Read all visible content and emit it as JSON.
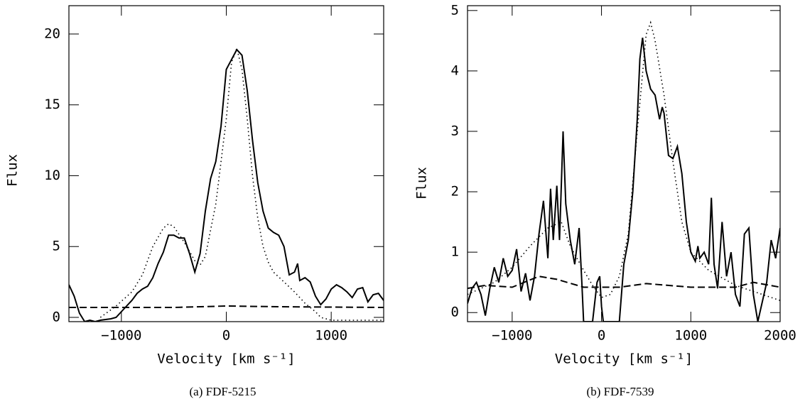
{
  "chart_data": [
    {
      "type": "line",
      "caption": "(a) FDF-5215",
      "xlabel": "Velocity [km s⁻¹]",
      "ylabel": "Flux",
      "xlim": [
        -1500,
        1500
      ],
      "ylim": [
        -0.3,
        22
      ],
      "xticks": [
        {
          "value": -1000,
          "label": "−1000"
        },
        0,
        1000
      ],
      "yticks": [
        0,
        5,
        10,
        15,
        20
      ],
      "series": [
        {
          "color": "#000000",
          "style": "solid",
          "x": [
            -1500,
            -1450,
            -1400,
            -1350,
            -1300,
            -1250,
            -1200,
            -1100,
            -1050,
            -1000,
            -950,
            -900,
            -850,
            -800,
            -750,
            -700,
            -650,
            -600,
            -550,
            -500,
            -450,
            -400,
            -350,
            -300,
            -250,
            -200,
            -150,
            -100,
            -50,
            0,
            50,
            100,
            150,
            200,
            250,
            300,
            350,
            400,
            450,
            500,
            550,
            600,
            650,
            680,
            700,
            750,
            800,
            850,
            900,
            950,
            1000,
            1050,
            1100,
            1150,
            1200,
            1250,
            1300,
            1350,
            1400,
            1450,
            1500
          ],
          "values": [
            2.3,
            1.5,
            0.3,
            -0.3,
            -0.2,
            -0.3,
            -0.2,
            -0.1,
            0,
            0.4,
            0.8,
            1.2,
            1.7,
            2.0,
            2.2,
            2.8,
            3.8,
            4.6,
            5.8,
            5.8,
            5.6,
            5.6,
            4.5,
            3.2,
            4.5,
            7.5,
            9.8,
            11,
            13.5,
            17.5,
            18.2,
            18.9,
            18.5,
            16,
            12.5,
            9.5,
            7.5,
            6.3,
            6.0,
            5.8,
            5.0,
            3.0,
            3.2,
            3.8,
            2.6,
            2.8,
            2.5,
            1.5,
            0.9,
            1.3,
            2.0,
            2.3,
            2.1,
            1.8,
            1.4,
            2.0,
            2.1,
            1.1,
            1.6,
            1.7,
            1.2
          ]
        },
        {
          "color": "#000000",
          "style": "dotted",
          "x": [
            -1200,
            -1050,
            -900,
            -800,
            -700,
            -600,
            -550,
            -500,
            -400,
            -300,
            -250,
            -200,
            -100,
            0,
            50,
            100,
            150,
            200,
            250,
            300,
            350,
            400,
            450,
            550,
            650,
            750,
            850,
            900,
            1000,
            1500
          ],
          "values": [
            0,
            0.8,
            1.8,
            3,
            5,
            6.3,
            6.6,
            6.4,
            5.3,
            4.0,
            3.7,
            4.3,
            8,
            14,
            18,
            19,
            17.5,
            14,
            10,
            7,
            5,
            3.9,
            3.2,
            2.5,
            1.8,
            1.0,
            0.4,
            0,
            -0.2,
            -0.2
          ]
        },
        {
          "color": "#000000",
          "style": "dashed",
          "x": [
            -1500,
            -500,
            0,
            500,
            1500
          ],
          "values": [
            0.7,
            0.7,
            0.8,
            0.75,
            0.7
          ]
        }
      ]
    },
    {
      "type": "line",
      "caption": "(b) FDF-7539",
      "xlabel": "Velocity [km s⁻¹]",
      "ylabel": "Flux",
      "xlim": [
        -1500,
        2000
      ],
      "ylim": [
        -0.15,
        5.08
      ],
      "xticks": [
        {
          "value": -1000,
          "label": "−1000"
        },
        0,
        1000,
        2000
      ],
      "yticks": [
        0,
        1,
        2,
        3,
        4,
        5
      ],
      "series": [
        {
          "color": "#000000",
          "style": "solid",
          "x": [
            -1500,
            -1450,
            -1400,
            -1350,
            -1300,
            -1250,
            -1200,
            -1150,
            -1100,
            -1050,
            -1000,
            -950,
            -900,
            -850,
            -800,
            -750,
            -700,
            -650,
            -600,
            -570,
            -540,
            -500,
            -470,
            -430,
            -400,
            -350,
            -300,
            -250,
            -220,
            -200,
            -100,
            -50,
            -20,
            0,
            20,
            200,
            250,
            300,
            350,
            400,
            430,
            460,
            500,
            550,
            600,
            650,
            680,
            700,
            750,
            800,
            850,
            900,
            950,
            1000,
            1050,
            1080,
            1100,
            1150,
            1200,
            1230,
            1260,
            1300,
            1350,
            1400,
            1450,
            1500,
            1550,
            1600,
            1650,
            1700,
            1750,
            1850,
            1900,
            1950,
            2000
          ],
          "values": [
            0.15,
            0.4,
            0.5,
            0.3,
            -0.05,
            0.4,
            0.75,
            0.5,
            0.9,
            0.6,
            0.7,
            1.05,
            0.35,
            0.65,
            0.2,
            0.6,
            1.3,
            1.85,
            0.9,
            2.05,
            1.2,
            2.1,
            1.2,
            3.0,
            1.8,
            1.2,
            0.8,
            1.4,
            0.5,
            -0.15,
            -0.15,
            0.5,
            0.6,
            0.1,
            -0.15,
            -0.15,
            0.8,
            1.2,
            2,
            3.2,
            4.2,
            4.55,
            4.0,
            3.7,
            3.6,
            3.2,
            3.4,
            3.3,
            2.6,
            2.55,
            2.75,
            2.3,
            1.5,
            1.0,
            0.85,
            1.1,
            0.9,
            1.0,
            0.8,
            1.9,
            0.8,
            0.4,
            1.5,
            0.6,
            1.0,
            0.3,
            0.1,
            1.3,
            1.4,
            0.3,
            -0.15,
            0.5,
            1.2,
            0.9,
            1.4
          ]
        },
        {
          "color": "#000000",
          "style": "dotted",
          "x": [
            -1500,
            -1200,
            -1000,
            -800,
            -600,
            -450,
            -350,
            -200,
            -100,
            0,
            100,
            200,
            300,
            400,
            500,
            550,
            600,
            700,
            800,
            900,
            1000,
            1200,
            1500,
            1800,
            2000
          ],
          "values": [
            0.3,
            0.5,
            0.75,
            1.1,
            1.4,
            1.5,
            1.1,
            0.7,
            0.45,
            0.25,
            0.3,
            0.6,
            1.3,
            3.0,
            4.6,
            4.8,
            4.5,
            3.6,
            2.5,
            1.5,
            1.0,
            0.7,
            0.45,
            0.3,
            0.2
          ]
        },
        {
          "color": "#000000",
          "style": "dashed",
          "x": [
            -1500,
            -1300,
            -1000,
            -700,
            -500,
            -200,
            200,
            500,
            1000,
            1500,
            1700,
            2000
          ],
          "values": [
            0.4,
            0.45,
            0.42,
            0.6,
            0.55,
            0.42,
            0.42,
            0.48,
            0.42,
            0.42,
            0.5,
            0.42
          ]
        }
      ]
    }
  ]
}
